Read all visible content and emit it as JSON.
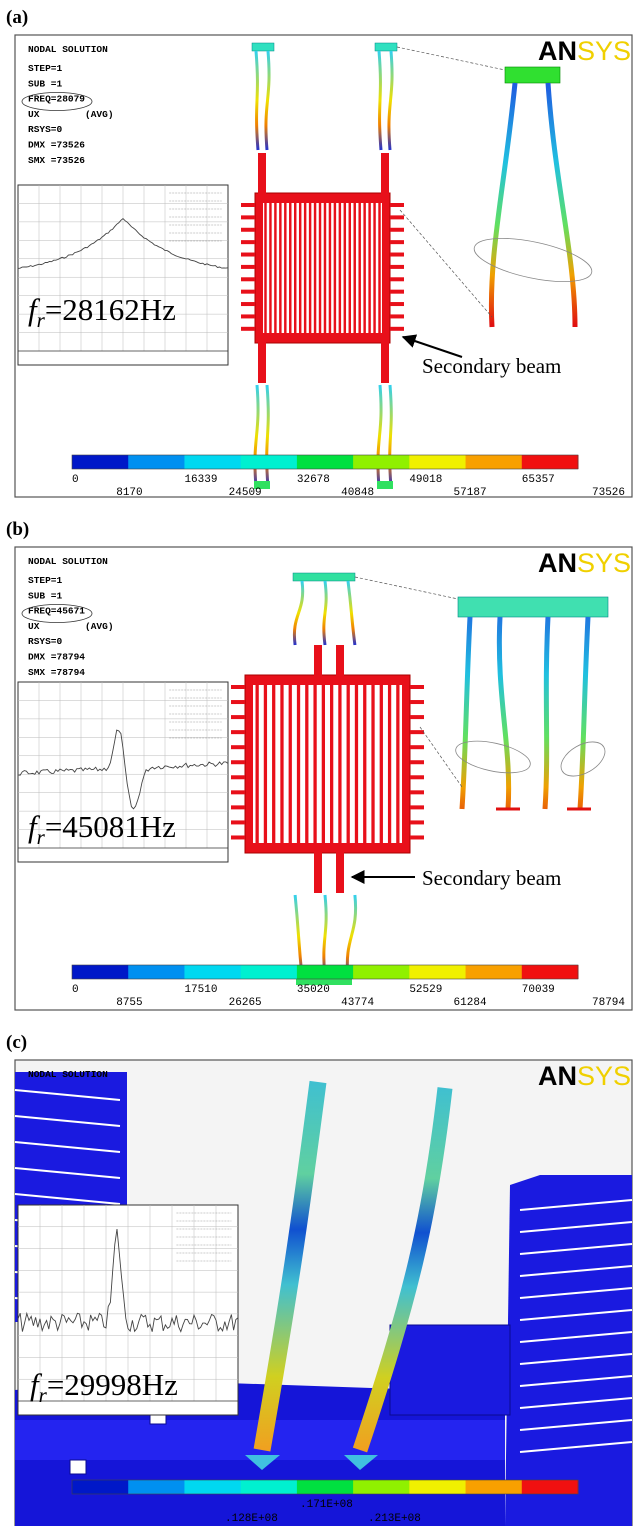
{
  "panels": [
    {
      "label": "(a)",
      "title": "NODAL SOLUTION",
      "info": [
        "STEP=1",
        "SUB =1",
        "FREQ=28079",
        "UX        (AVG)",
        "RSYS=0",
        "DMX =73526",
        "SMX =73526"
      ],
      "logo": [
        "AN",
        "SYS"
      ],
      "resonance": {
        "symbol": "f",
        "subscript": "r",
        "text": "=28162Hz"
      },
      "annotation": "Secondary beam",
      "colorbar": [
        0,
        8170,
        16339,
        24509,
        32678,
        40848,
        49018,
        57187,
        65357,
        73526
      ]
    },
    {
      "label": "(b)",
      "title": "NODAL SOLUTION",
      "info": [
        "STEP=1",
        "SUB =1",
        "FREQ=45671",
        "UX        (AVG)",
        "RSYS=0",
        "DMX =78794",
        "SMX =78794"
      ],
      "logo": [
        "AN",
        "SYS"
      ],
      "resonance": {
        "symbol": "f",
        "subscript": "r",
        "text": "=45081Hz"
      },
      "annotation": "Secondary beam",
      "colorbar": [
        0,
        8755,
        17510,
        26265,
        35020,
        43774,
        52529,
        61284,
        70039,
        78794
      ]
    },
    {
      "label": "(c)",
      "title": "NODAL SOLUTION",
      "logo": [
        "AN",
        "SYS"
      ],
      "resonance": {
        "symbol": "f",
        "subscript": "r",
        "text": "=29998Hz"
      },
      "colorbar": [
        ".128E+08",
        ".171E+08",
        ".213E+08"
      ]
    }
  ]
}
